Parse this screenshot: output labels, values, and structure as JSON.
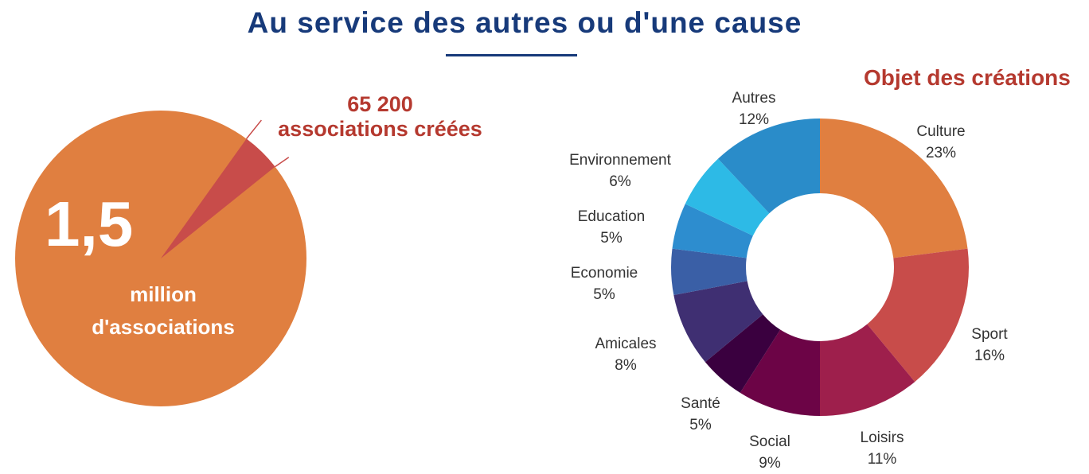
{
  "header": {
    "title": "Au service des autres ou d'une cause"
  },
  "chart_data": [
    {
      "type": "pie",
      "big_value": "1,5",
      "big_label_line1": "million",
      "big_label_line2": "d'associations",
      "callout_value": "65 200",
      "callout_label": "associations créées",
      "total": 1500000,
      "highlight": 65200,
      "colors": {
        "total": "#e07f40",
        "highlight": "#c84c4a"
      }
    },
    {
      "type": "pie",
      "variant": "donut",
      "title": "Objet des créations",
      "slices": [
        {
          "name": "Culture",
          "value": 23,
          "label": "23%",
          "color": "#e07f40"
        },
        {
          "name": "Sport",
          "value": 16,
          "label": "16%",
          "color": "#c84c4a"
        },
        {
          "name": "Loisirs",
          "value": 11,
          "label": "11%",
          "color": "#9e1f4c"
        },
        {
          "name": "Social",
          "value": 9,
          "label": "9%",
          "color": "#6c0446"
        },
        {
          "name": "Santé",
          "value": 5,
          "label": "5%",
          "color": "#3a003f"
        },
        {
          "name": "Amicales",
          "value": 8,
          "label": "8%",
          "color": "#3f2f72"
        },
        {
          "name": "Economie",
          "value": 5,
          "label": "5%",
          "color": "#3a5fa6"
        },
        {
          "name": "Education",
          "value": 5,
          "label": "5%",
          "color": "#2d8dcf"
        },
        {
          "name": "Environnement",
          "value": 6,
          "label": "6%",
          "color": "#2dbae6"
        },
        {
          "name": "Autres",
          "value": 12,
          "label": "12%",
          "color": "#2a8cc9"
        }
      ]
    }
  ]
}
